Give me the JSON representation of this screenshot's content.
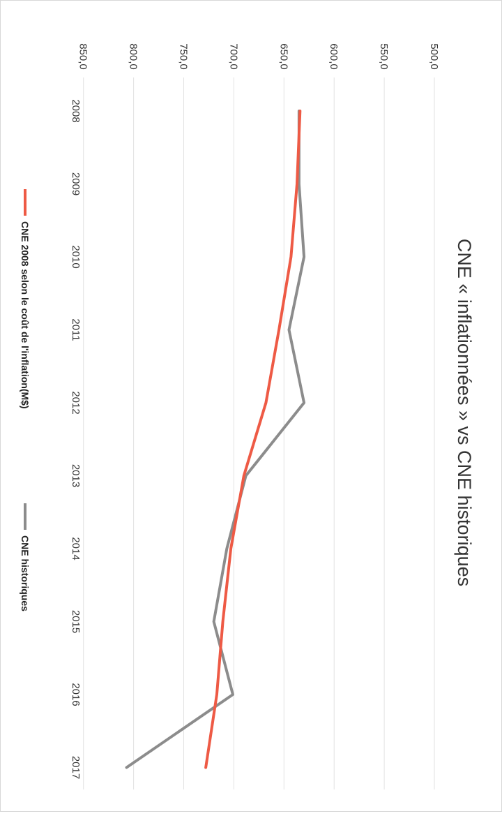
{
  "chart_data": {
    "type": "line",
    "title": "CNE « inflationnées » vs CNE historiques",
    "xlabel": "",
    "ylabel": "",
    "categories": [
      "2008",
      "2009",
      "2010",
      "2011",
      "2012",
      "2013",
      "2014",
      "2015",
      "2016",
      "2017"
    ],
    "y_ticks": [
      "500,0",
      "550,0",
      "600,0",
      "650,0",
      "700,0",
      "750,0",
      "800,0",
      "850,0"
    ],
    "ylim": [
      500,
      850
    ],
    "grid": true,
    "legend_position": "bottom",
    "orientation": "rotated 90° clockwise",
    "series": [
      {
        "name": "CNE 2008 selon le coût de l'inflation(M$)",
        "color": "#ee5a45",
        "values": [
          634,
          637,
          643,
          655,
          668,
          690,
          703,
          711,
          717,
          728
        ]
      },
      {
        "name": "CNE historiques",
        "color": "#8c8c8c",
        "values": [
          635,
          635,
          630,
          645,
          630,
          688,
          707,
          720,
          701,
          807
        ]
      }
    ]
  }
}
